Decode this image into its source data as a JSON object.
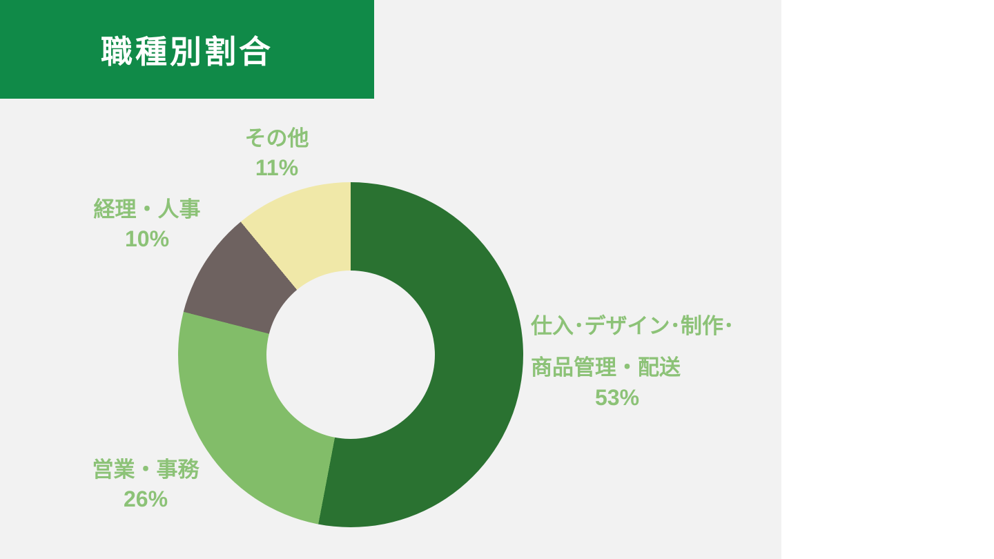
{
  "header": {
    "title": "職種別割合",
    "bg_color": "#108a48",
    "text_color": "#ffffff"
  },
  "canvas": {
    "panel_bg": "#f2f2f2",
    "page_bg": "#ffffff",
    "label_color": "#8cc277"
  },
  "chart_data": {
    "type": "pie",
    "donut": true,
    "title": "職種別割合",
    "start_angle_deg": 0,
    "direction": "clockwise",
    "hole_ratio": 0.49,
    "hole_color": "#f2f2f2",
    "legend_position": "outside-labels",
    "segments": [
      {
        "label": "仕入･デザイン･制作･商品管理・配送",
        "label_lines": [
          "仕入･デザイン･制作･",
          "商品管理・配送"
        ],
        "value": 53,
        "pct": "53%",
        "color": "#2a7231"
      },
      {
        "label": "営業・事務",
        "label_lines": [
          "営業・事務"
        ],
        "value": 26,
        "pct": "26%",
        "color": "#82bd69"
      },
      {
        "label": "経理・人事",
        "label_lines": [
          "経理・人事"
        ],
        "value": 10,
        "pct": "10%",
        "color": "#6e6260"
      },
      {
        "label": "その他",
        "label_lines": [
          "その他"
        ],
        "value": 11,
        "pct": "11%",
        "color": "#f0e8a8"
      }
    ]
  }
}
